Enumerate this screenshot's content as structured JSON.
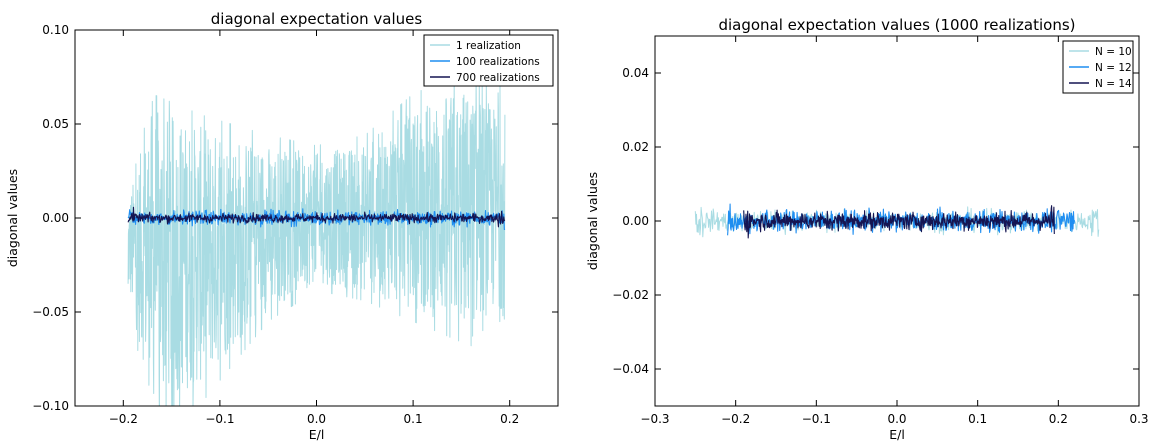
{
  "chart_data": [
    {
      "type": "line",
      "title": "diagonal expectation values",
      "xlabel": "E/l",
      "ylabel": "diagonal values",
      "xlim": [
        -0.25,
        0.25
      ],
      "ylim": [
        -0.1,
        0.1
      ],
      "xticks": [
        "−0.2",
        "−0.1",
        "0.0",
        "0.1",
        "0.2"
      ],
      "xtick_values": [
        -0.2,
        -0.1,
        0.0,
        0.1,
        0.2
      ],
      "yticks": [
        "−0.10",
        "−0.05",
        "0.00",
        "0.05",
        "0.10"
      ],
      "ytick_values": [
        -0.1,
        -0.05,
        0.0,
        0.05,
        0.1
      ],
      "legend_position": "top-right",
      "grid": false,
      "series": [
        {
          "name": "1 realization",
          "color": "#a9dce3",
          "x_range": [
            -0.195,
            0.195
          ],
          "envelope_x": [
            -0.195,
            -0.17,
            -0.12,
            -0.05,
            0.0,
            0.05,
            0.1,
            0.15,
            0.19
          ],
          "envelope_hi": [
            0.01,
            0.06,
            0.05,
            0.04,
            0.035,
            0.04,
            0.06,
            0.07,
            0.06
          ],
          "envelope_lo": [
            -0.04,
            -0.1,
            -0.09,
            -0.05,
            -0.035,
            -0.04,
            -0.05,
            -0.06,
            -0.05
          ],
          "samples": [
            [
              -0.195,
              -0.035
            ],
            [
              -0.17,
              0.062
            ],
            [
              -0.15,
              -0.09
            ],
            [
              -0.1,
              0.04
            ],
            [
              0.0,
              0.0
            ],
            [
              0.1,
              0.05
            ],
            [
              0.16,
              -0.068
            ],
            [
              0.19,
              0.07
            ],
            [
              0.193,
              -0.052
            ]
          ]
        },
        {
          "name": "100 realizations",
          "color": "#1f8ef1",
          "x_range": [
            -0.195,
            0.195
          ],
          "mean": 0.0,
          "amplitude": 0.004
        },
        {
          "name": "700 realizations",
          "color": "#151552",
          "x_range": [
            -0.195,
            0.195
          ],
          "mean": 0.0,
          "amplitude": 0.0025
        }
      ]
    },
    {
      "type": "line",
      "title": "diagonal expectation values (1000 realizations)",
      "xlabel": "E/l",
      "ylabel": "diagonal values",
      "xlim": [
        -0.3,
        0.3
      ],
      "ylim": [
        -0.05,
        0.05
      ],
      "xticks": [
        "−0.3",
        "−0.2",
        "−0.1",
        "0.0",
        "0.1",
        "0.2",
        "0.3"
      ],
      "xtick_values": [
        -0.3,
        -0.2,
        -0.1,
        0.0,
        0.1,
        0.2,
        0.3
      ],
      "yticks": [
        "−0.04",
        "−0.02",
        "0.00",
        "0.02",
        "0.04"
      ],
      "ytick_values": [
        -0.04,
        -0.02,
        0.0,
        0.02,
        0.04
      ],
      "legend_position": "top-right",
      "grid": false,
      "series": [
        {
          "name": "N = 10",
          "color": "#a9dce3",
          "x_range": [
            -0.25,
            0.25
          ],
          "mean": 0.0,
          "amplitude": 0.003
        },
        {
          "name": "N = 12",
          "color": "#1f8ef1",
          "x_range": [
            -0.21,
            0.22
          ],
          "mean": 0.0,
          "amplitude": 0.003
        },
        {
          "name": "N = 14",
          "color": "#151552",
          "x_range": [
            -0.19,
            0.195
          ],
          "mean": 0.0,
          "amplitude": 0.0025
        }
      ]
    }
  ]
}
